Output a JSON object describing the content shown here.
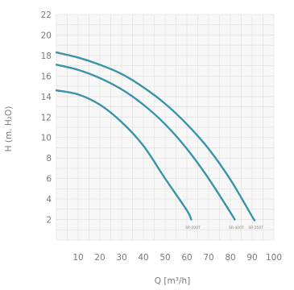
{
  "chart_data": {
    "type": "line",
    "xlabel": "Q [m³/h]",
    "ylabel": "H (m. H₂O)",
    "xlim": [
      0,
      100
    ],
    "ylim": [
      0,
      22
    ],
    "x_ticks": [
      10,
      20,
      30,
      40,
      50,
      60,
      70,
      80,
      90,
      100
    ],
    "y_ticks": [
      2,
      4,
      6,
      8,
      10,
      12,
      14,
      16,
      18,
      20,
      22
    ],
    "grid": true,
    "line_color": "#3a93a8",
    "series": [
      {
        "name": "SR-200T",
        "x": [
          0,
          10,
          20,
          30,
          40,
          50,
          60,
          62
        ],
        "y": [
          14.6,
          14.2,
          13.2,
          11.5,
          9.2,
          6.0,
          2.9,
          2.0
        ]
      },
      {
        "name": "SR-400T",
        "x": [
          0,
          10,
          20,
          30,
          40,
          50,
          60,
          70,
          80,
          82
        ],
        "y": [
          17.1,
          16.6,
          15.8,
          14.7,
          13.2,
          11.3,
          8.9,
          6.0,
          2.7,
          2.0
        ]
      },
      {
        "name": "SR-250T",
        "x": [
          0,
          10,
          20,
          30,
          40,
          50,
          60,
          70,
          80,
          90,
          91
        ],
        "y": [
          18.3,
          17.8,
          17.1,
          16.2,
          14.9,
          13.3,
          11.3,
          8.9,
          5.9,
          2.3,
          2.0
        ]
      }
    ]
  }
}
